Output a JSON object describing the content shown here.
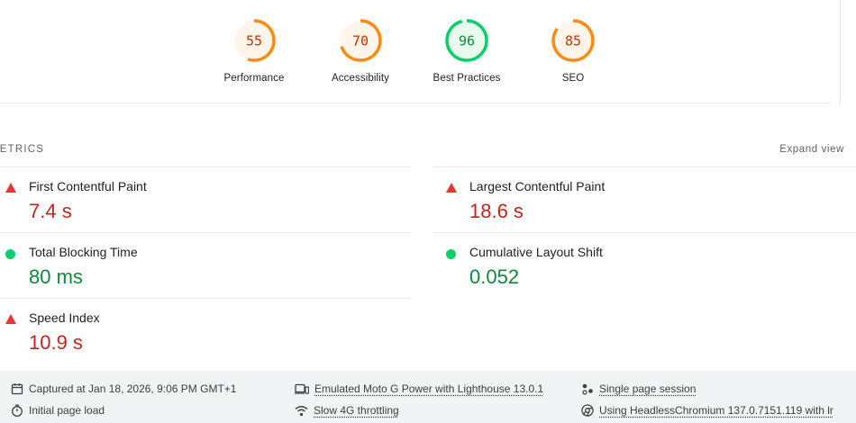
{
  "gauges": [
    {
      "score": "55",
      "label": "Performance",
      "fraction": 0.55,
      "color": "#fa8c16",
      "bg": "#fff5ea"
    },
    {
      "score": "70",
      "label": "Accessibility",
      "fraction": 0.7,
      "color": "#fa8c16",
      "bg": "#fff5ea"
    },
    {
      "score": "96",
      "label": "Best Practices",
      "fraction": 0.96,
      "color": "#0cce6b",
      "bg": "#e9faef"
    },
    {
      "score": "85",
      "label": "SEO",
      "fraction": 0.85,
      "color": "#fa8c16",
      "bg": "#fff5ea"
    }
  ],
  "metrics_section": {
    "title": "METRICS",
    "expand_label": "Expand view"
  },
  "metrics": [
    {
      "label": "First Contentful Paint",
      "value": "7.4 s",
      "status": "fail"
    },
    {
      "label": "Largest Contentful Paint",
      "value": "18.6 s",
      "status": "fail"
    },
    {
      "label": "Total Blocking Time",
      "value": "80 ms",
      "status": "pass"
    },
    {
      "label": "Cumulative Layout Shift",
      "value": "0.052",
      "status": "pass"
    },
    {
      "label": "Speed Index",
      "value": "10.9 s",
      "status": "fail"
    }
  ],
  "footer": {
    "captured": "Captured at Jan 18, 2026, 9:06 PM GMT+1",
    "initial_load": "Initial page load",
    "emulated": "Emulated Moto G Power with Lighthouse 13.0.1",
    "throttling": "Slow 4G throttling",
    "session": "Single page session",
    "browser": "Using HeadlessChromium 137.0.7151.119 with lr"
  },
  "colors": {
    "fail": "#e8362f",
    "pass": "#0cce6b",
    "fail_text": "#c7221f",
    "pass_text": "#0c8a3b"
  }
}
